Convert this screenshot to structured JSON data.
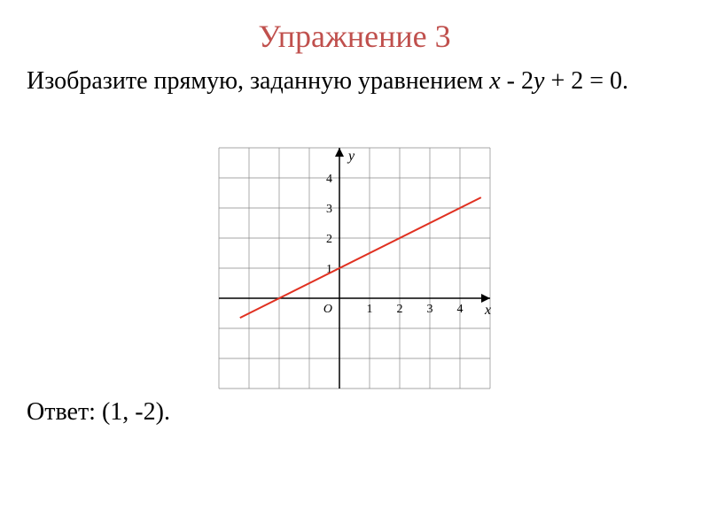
{
  "title": {
    "text": "Упражнение 3",
    "color": "#c0504d",
    "fontsize": 36
  },
  "problem": {
    "prefix": "Изобразите прямую, заданную уравнением ",
    "equation_var1": "x",
    "equation_mid": " - 2",
    "equation_var2": "y",
    "equation_end": " + 2 = 0.",
    "color": "#000000",
    "fontsize": 28
  },
  "answer": {
    "label": "Ответ:",
    "value": " (1, -2).",
    "fontsize": 28
  },
  "chart": {
    "type": "line",
    "grid_cols": 9,
    "grid_rows": 8,
    "cell_size": 34,
    "origin_col": 4,
    "origin_row": 5,
    "x_axis_label": "x",
    "y_axis_label": "y",
    "origin_label": "O",
    "x_ticks": [
      1,
      2,
      3,
      4
    ],
    "y_ticks": [
      1,
      2,
      3,
      4
    ],
    "tick_fontsize": 14,
    "grid_color": "#888888",
    "grid_width": 0.7,
    "axis_color": "#000000",
    "axis_width": 1.5,
    "line_color": "#e03020",
    "line_width": 2,
    "line_points": [
      {
        "x": -3.3,
        "y": -0.65
      },
      {
        "x": 4.7,
        "y": 3.35
      }
    ],
    "background_color": "#ffffff"
  }
}
